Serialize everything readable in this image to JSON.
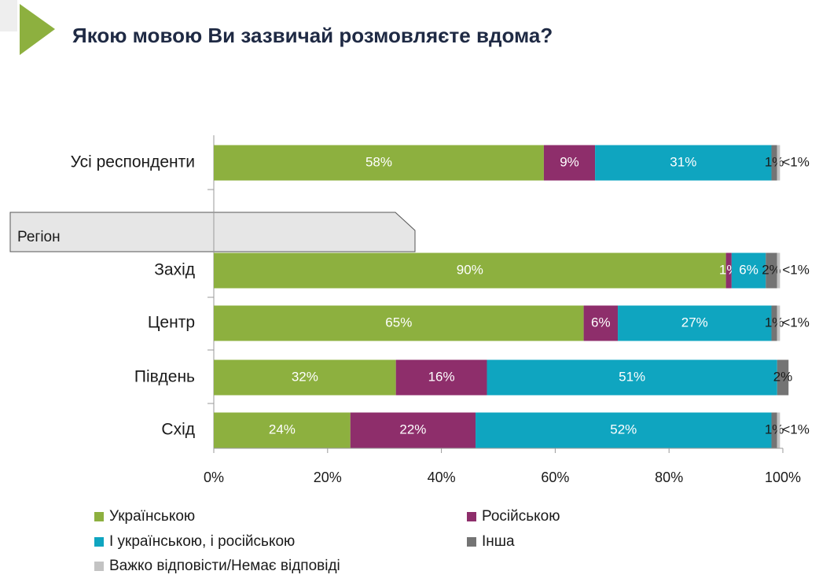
{
  "chart_data": {
    "type": "stacked-bar-horizontal",
    "title": "Якою мовою Ви зазвичай розмовляєте вдома?",
    "group_label": "Регіон",
    "categories": [
      "Усі респонденти",
      "Захід",
      "Центр",
      "Південь",
      "Схід"
    ],
    "series": [
      {
        "name": "Українською",
        "color": "#8db03f",
        "values": [
          58,
          90,
          65,
          32,
          24
        ],
        "value_labels": [
          "58%",
          "90%",
          "65%",
          "32%",
          "24%"
        ]
      },
      {
        "name": "Російською",
        "color": "#8e2e6b",
        "values": [
          9,
          1,
          6,
          16,
          22
        ],
        "value_labels": [
          "9%",
          "1%",
          "6%",
          "16%",
          "22%"
        ]
      },
      {
        "name": "І українською, і російською",
        "color": "#0fa5c0",
        "values": [
          31,
          6,
          27,
          51,
          52
        ],
        "value_labels": [
          "31%",
          "6%",
          "27%",
          "51%",
          "52%"
        ]
      },
      {
        "name": "Інша",
        "color": "#747474",
        "values": [
          1,
          2,
          1,
          2,
          1
        ],
        "value_labels": [
          "1%",
          "2%",
          "1%",
          "2%",
          "1%"
        ]
      },
      {
        "name": "Важко відповісти/Немає відповіді",
        "color": "#c3c3c3",
        "values": [
          0.5,
          0.5,
          0.5,
          0,
          0.5
        ],
        "value_labels": [
          "<1%",
          "<1%",
          "<1%",
          null,
          "<1%"
        ]
      }
    ],
    "xlim": [
      0,
      100
    ],
    "xticks": [
      {
        "value": 0,
        "label": "0%"
      },
      {
        "value": 20,
        "label": "20%"
      },
      {
        "value": 40,
        "label": "40%"
      },
      {
        "value": 60,
        "label": "60%"
      },
      {
        "value": 80,
        "label": "80%"
      },
      {
        "value": 100,
        "label": "100%"
      }
    ]
  }
}
